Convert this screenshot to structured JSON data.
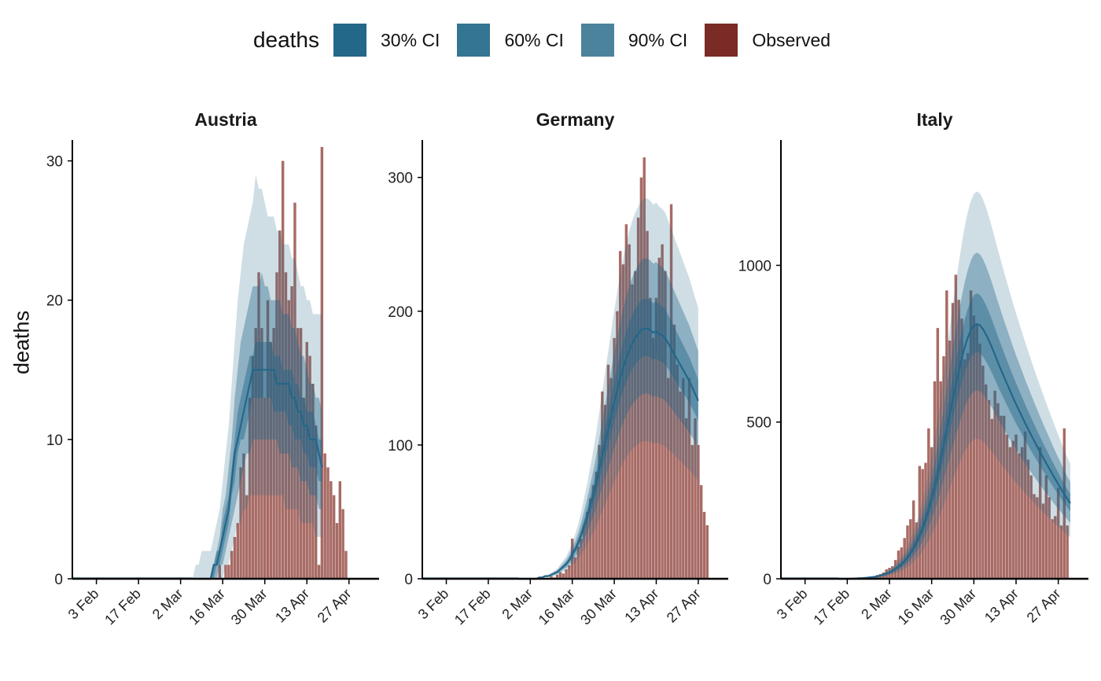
{
  "legend": {
    "title": "deaths",
    "items": [
      {
        "label": "30% CI",
        "color": "#236789"
      },
      {
        "label": "60% CI",
        "color": "#347593"
      },
      {
        "label": "90% CI",
        "color": "#4b839d"
      },
      {
        "label": "Observed",
        "color": "#7a2b25"
      }
    ]
  },
  "ylabel": "deaths",
  "colors": {
    "band": "#236789",
    "median": "#236789",
    "observed": "#8b3a32"
  },
  "chart_data": [
    {
      "type": "bar",
      "title": "Austria",
      "ylabel": "deaths",
      "x_start": "2020-01-27",
      "x_ticks": [
        "3 Feb",
        "17 Feb",
        "2 Mar",
        "16 Mar",
        "30 Mar",
        "13 Apr",
        "27 Apr"
      ],
      "x_range": [
        "2020-01-26",
        "2020-05-07"
      ],
      "ylim": [
        0,
        31.5
      ],
      "y_ticks": [
        0,
        10,
        20,
        30
      ],
      "observed_start": "2020-03-12",
      "observed": [
        0,
        0,
        0,
        1,
        0,
        1,
        1,
        2,
        3,
        4,
        8,
        9,
        6,
        13,
        16,
        18,
        22,
        18,
        13,
        20,
        17,
        18,
        22,
        25,
        30,
        22,
        20,
        21,
        27,
        18,
        18,
        13,
        17,
        16,
        14,
        11,
        1,
        31,
        9,
        8,
        7,
        6,
        4,
        7,
        5,
        2
      ],
      "median_start": "2020-03-06",
      "median": [
        0,
        0,
        0,
        0,
        0,
        0,
        0,
        1,
        1,
        2,
        3,
        4,
        5,
        7,
        9,
        10,
        11,
        12,
        13,
        14,
        15,
        15,
        15,
        15,
        15,
        15,
        15,
        15,
        14,
        14,
        14,
        14,
        14,
        13,
        13,
        12,
        12,
        11,
        11,
        10,
        10,
        10,
        9,
        8
      ],
      "ci": {
        "30": {
          "lower": [
            0,
            0,
            0,
            0,
            0,
            0,
            0,
            0,
            1,
            1,
            2,
            3,
            4,
            6,
            7,
            9,
            10,
            10,
            11,
            12,
            13,
            13,
            13,
            13,
            13,
            13,
            13,
            12,
            12,
            12,
            12,
            12,
            11,
            11,
            10,
            10,
            10,
            9,
            9,
            8,
            8,
            8,
            7,
            7
          ],
          "upper": [
            0,
            0,
            0,
            0,
            0,
            0,
            0,
            1,
            2,
            2,
            4,
            5,
            6,
            8,
            10,
            12,
            13,
            14,
            15,
            16,
            16,
            17,
            17,
            17,
            17,
            17,
            17,
            16,
            16,
            16,
            15,
            15,
            15,
            15,
            14,
            14,
            13,
            13,
            12,
            12,
            12,
            11,
            10,
            10
          ]
        },
        "60": {
          "lower": [
            0,
            0,
            0,
            0,
            0,
            0,
            0,
            0,
            0,
            1,
            1,
            2,
            3,
            4,
            5,
            6,
            7,
            8,
            9,
            9,
            10,
            10,
            10,
            10,
            10,
            10,
            10,
            10,
            10,
            9,
            9,
            9,
            9,
            8,
            8,
            8,
            7,
            7,
            7,
            6,
            6,
            6,
            5,
            5
          ],
          "upper": [
            0,
            0,
            0,
            0,
            0,
            0,
            0,
            1,
            2,
            3,
            5,
            6,
            8,
            10,
            13,
            15,
            17,
            18,
            19,
            20,
            21,
            21,
            21,
            22,
            21,
            21,
            20,
            20,
            20,
            20,
            19,
            19,
            19,
            18,
            18,
            17,
            16,
            16,
            15,
            14,
            14,
            13,
            13,
            12
          ]
        },
        "90": {
          "lower": [
            0,
            0,
            0,
            0,
            0,
            0,
            0,
            0,
            0,
            0,
            0,
            1,
            1,
            2,
            3,
            4,
            4,
            5,
            5,
            6,
            6,
            6,
            6,
            6,
            6,
            6,
            6,
            6,
            6,
            6,
            6,
            5,
            5,
            5,
            5,
            5,
            4,
            4,
            4,
            4,
            4,
            3,
            3,
            3
          ],
          "upper": [
            0,
            1,
            1,
            2,
            2,
            2,
            2,
            3,
            4,
            5,
            7,
            9,
            11,
            14,
            17,
            20,
            22,
            24,
            25,
            26,
            27,
            29,
            28,
            28,
            27,
            26,
            26,
            26,
            25,
            25,
            24,
            24,
            24,
            23,
            23,
            22,
            21,
            21,
            20,
            20,
            19,
            19,
            19,
            19
          ]
        }
      }
    },
    {
      "type": "bar",
      "title": "Germany",
      "ylabel": "",
      "x_start": "2020-01-27",
      "x_ticks": [
        "3 Feb",
        "17 Feb",
        "2 Mar",
        "16 Mar",
        "30 Mar",
        "13 Apr",
        "27 Apr"
      ],
      "x_range": [
        "2020-01-26",
        "2020-05-07"
      ],
      "ylim": [
        0,
        328
      ],
      "y_ticks": [
        0,
        100,
        200,
        300
      ],
      "observed_start": "2020-03-09",
      "observed": [
        2,
        1,
        3,
        5,
        4,
        7,
        10,
        30,
        16,
        24,
        30,
        40,
        50,
        60,
        70,
        80,
        100,
        140,
        130,
        160,
        150,
        180,
        200,
        245,
        235,
        265,
        250,
        220,
        230,
        270,
        300,
        315,
        260,
        210,
        180,
        210,
        240,
        250,
        230,
        150,
        280,
        190,
        160,
        140,
        150,
        120,
        150,
        100,
        120,
        100,
        70,
        50,
        40
      ],
      "median_start": "2020-02-27",
      "median": [
        0,
        0,
        0,
        0,
        0,
        0,
        0,
        1,
        1,
        2,
        2,
        3,
        4,
        5,
        7,
        9,
        11,
        14,
        18,
        22,
        27,
        33,
        40,
        47,
        55,
        63,
        72,
        82,
        92,
        102,
        112,
        122,
        132,
        141,
        150,
        158,
        165,
        171,
        176,
        180,
        183,
        186,
        187,
        187,
        186,
        184,
        185,
        183,
        182,
        180,
        176,
        172,
        168,
        164,
        160,
        156,
        152,
        148,
        143,
        138,
        133
      ]
    },
    {
      "type": "bar",
      "title": "Italy",
      "ylabel": "",
      "x_start": "2020-01-27",
      "x_ticks": [
        "3 Feb",
        "17 Feb",
        "2 Mar",
        "16 Mar",
        "30 Mar",
        "13 Apr",
        "27 Apr"
      ],
      "x_range": [
        "2020-01-26",
        "2020-05-07"
      ],
      "ylim": [
        0,
        1400
      ],
      "y_ticks": [
        0,
        500,
        1000
      ],
      "observed_start": "2020-02-21",
      "observed": [
        1,
        2,
        3,
        4,
        5,
        8,
        12,
        15,
        20,
        30,
        35,
        40,
        60,
        90,
        100,
        130,
        170,
        190,
        250,
        180,
        360,
        350,
        370,
        480,
        420,
        630,
        800,
        630,
        710,
        920,
        760,
        880,
        970,
        890,
        830,
        700,
        720,
        920,
        840,
        810,
        750,
        680,
        620,
        570,
        510,
        600,
        560,
        520,
        520,
        460,
        420,
        440,
        460,
        400,
        420,
        470,
        380,
        330,
        270,
        260,
        420,
        240,
        330,
        260,
        190,
        200,
        290,
        170,
        480,
        170
      ],
      "median_start": "2020-02-14",
      "median": [
        0,
        0,
        0,
        0,
        0,
        1,
        1,
        2,
        2,
        3,
        4,
        5,
        6,
        8,
        10,
        13,
        16,
        20,
        25,
        31,
        38,
        46,
        56,
        68,
        82,
        98,
        117,
        138,
        162,
        190,
        221,
        256,
        294,
        335,
        380,
        427,
        476,
        525,
        573,
        619,
        663,
        704,
        740,
        770,
        793,
        808,
        813,
        809,
        797,
        780,
        760,
        738,
        714,
        690,
        667,
        644,
        622,
        600,
        578,
        557,
        537,
        517,
        497,
        478,
        459,
        440,
        422,
        404,
        386,
        369,
        352,
        335,
        318,
        302,
        286,
        270,
        255,
        241
      ]
    }
  ]
}
